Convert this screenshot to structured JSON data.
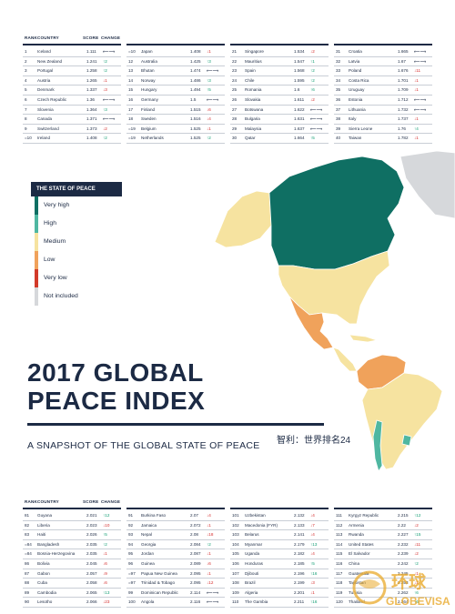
{
  "header": {
    "rank": "RANK",
    "country": "COUNTRY",
    "score": "SCORE",
    "change": "CHANGE"
  },
  "top_table": {
    "columns": [
      [
        {
          "rank": "1",
          "country": "Iceland",
          "score": "1.111",
          "change": "⟵⟶",
          "dir": "nc"
        },
        {
          "rank": "2",
          "country": "New Zealand",
          "score": "1.241",
          "change": "↑2",
          "dir": "up"
        },
        {
          "rank": "3",
          "country": "Portugal",
          "score": "1.258",
          "change": "↑2",
          "dir": "up"
        },
        {
          "rank": "4",
          "country": "Austria",
          "score": "1.265",
          "change": "↓1",
          "dir": "dn"
        },
        {
          "rank": "5",
          "country": "Denmark",
          "score": "1.337",
          "change": "↓3",
          "dir": "dn"
        },
        {
          "rank": "6",
          "country": "Czech Republic",
          "score": "1.36",
          "change": "⟵⟶",
          "dir": "nc"
        },
        {
          "rank": "7",
          "country": "Slovenia",
          "score": "1.364",
          "change": "↑3",
          "dir": "up"
        },
        {
          "rank": "8",
          "country": "Canada",
          "score": "1.371",
          "change": "⟵⟶",
          "dir": "nc"
        },
        {
          "rank": "9",
          "country": "Switzerland",
          "score": "1.373",
          "change": "↓2",
          "dir": "dn"
        },
        {
          "rank": "=10",
          "country": "Ireland",
          "score": "1.408",
          "change": "↑2",
          "dir": "up"
        }
      ],
      [
        {
          "rank": "=10",
          "country": "Japan",
          "score": "1.408",
          "change": "↓1",
          "dir": "dn"
        },
        {
          "rank": "12",
          "country": "Australia",
          "score": "1.425",
          "change": "↑3",
          "dir": "up"
        },
        {
          "rank": "13",
          "country": "Bhutan",
          "score": "1.474",
          "change": "⟵⟶",
          "dir": "nc"
        },
        {
          "rank": "14",
          "country": "Norway",
          "score": "1.486",
          "change": "↑3",
          "dir": "up"
        },
        {
          "rank": "15",
          "country": "Hungary",
          "score": "1.494",
          "change": "↑5",
          "dir": "up"
        },
        {
          "rank": "16",
          "country": "Germany",
          "score": "1.5",
          "change": "⟵⟶",
          "dir": "nc"
        },
        {
          "rank": "17",
          "country": "Finland",
          "score": "1.515",
          "change": "↓6",
          "dir": "dn"
        },
        {
          "rank": "18",
          "country": "Sweden",
          "score": "1.516",
          "change": "↓4",
          "dir": "dn"
        },
        {
          "rank": "=19",
          "country": "Belgium",
          "score": "1.525",
          "change": "↓1",
          "dir": "dn"
        },
        {
          "rank": "=19",
          "country": "Netherlands",
          "score": "1.525",
          "change": "↑2",
          "dir": "up"
        }
      ],
      [
        {
          "rank": "21",
          "country": "Singapore",
          "score": "1.534",
          "change": "↓2",
          "dir": "dn"
        },
        {
          "rank": "22",
          "country": "Mauritius",
          "score": "1.547",
          "change": "↑1",
          "dir": "up"
        },
        {
          "rank": "23",
          "country": "Spain",
          "score": "1.568",
          "change": "↑2",
          "dir": "up"
        },
        {
          "rank": "24",
          "country": "Chile",
          "score": "1.595",
          "change": "↑2",
          "dir": "up"
        },
        {
          "rank": "25",
          "country": "Romania",
          "score": "1.6",
          "change": "↑6",
          "dir": "up"
        },
        {
          "rank": "26",
          "country": "Slovakia",
          "score": "1.611",
          "change": "↓2",
          "dir": "dn"
        },
        {
          "rank": "27",
          "country": "Botswana",
          "score": "1.622",
          "change": "⟵⟶",
          "dir": "nc"
        },
        {
          "rank": "28",
          "country": "Bulgaria",
          "score": "1.631",
          "change": "⟵⟶",
          "dir": "nc"
        },
        {
          "rank": "29",
          "country": "Malaysia",
          "score": "1.637",
          "change": "⟵⟶",
          "dir": "nc"
        },
        {
          "rank": "30",
          "country": "Qatar",
          "score": "1.664",
          "change": "↑5",
          "dir": "up"
        }
      ],
      [
        {
          "rank": "31",
          "country": "Croatia",
          "score": "1.665",
          "change": "⟵⟶",
          "dir": "nc"
        },
        {
          "rank": "32",
          "country": "Latvia",
          "score": "1.67",
          "change": "⟵⟶",
          "dir": "nc"
        },
        {
          "rank": "33",
          "country": "Poland",
          "score": "1.676",
          "change": "↓11",
          "dir": "dn"
        },
        {
          "rank": "34",
          "country": "Costa Rica",
          "score": "1.701",
          "change": "↓1",
          "dir": "dn"
        },
        {
          "rank": "35",
          "country": "Uruguay",
          "score": "1.709",
          "change": "↓1",
          "dir": "dn"
        },
        {
          "rank": "36",
          "country": "Estonia",
          "score": "1.712",
          "change": "⟵⟶",
          "dir": "nc"
        },
        {
          "rank": "37",
          "country": "Lithuania",
          "score": "1.732",
          "change": "⟵⟶",
          "dir": "nc"
        },
        {
          "rank": "38",
          "country": "Italy",
          "score": "1.737",
          "change": "↓1",
          "dir": "dn"
        },
        {
          "rank": "39",
          "country": "Sierra Leone",
          "score": "1.76",
          "change": "↑4",
          "dir": "up"
        },
        {
          "rank": "40",
          "country": "Taiwan",
          "score": "1.782",
          "change": "↓1",
          "dir": "dn"
        }
      ]
    ]
  },
  "legend": {
    "title": "THE STATE OF PEACE",
    "items": [
      {
        "label": "Very high",
        "color": "#0f6f63"
      },
      {
        "label": "High",
        "color": "#4fb7a1"
      },
      {
        "label": "Medium",
        "color": "#f6e3a0"
      },
      {
        "label": "Low",
        "color": "#f0a25b"
      },
      {
        "label": "Very low",
        "color": "#d23a2a"
      },
      {
        "label": "Not included",
        "color": "#d6d8db"
      }
    ]
  },
  "map_colors": {
    "very_high": "#0f6f63",
    "high": "#4fb7a1",
    "medium": "#f6e3a0",
    "low": "#f0a25b",
    "not_included": "#d6d8db"
  },
  "title": {
    "line1": "2017 GLOBAL",
    "line2": "PEACE INDEX"
  },
  "subtitle": "A SNAPSHOT OF THE GLOBAL STATE OF PEACE",
  "chinese_caption": "智利：世界排名24",
  "bottom_table": {
    "columns": [
      [
        {
          "rank": "81",
          "country": "Guyana",
          "score": "2.021",
          "change": "↑12",
          "dir": "up"
        },
        {
          "rank": "82",
          "country": "Liberia",
          "score": "2.023",
          "change": "↓10",
          "dir": "dn"
        },
        {
          "rank": "83",
          "country": "Haiti",
          "score": "2.026",
          "change": "↑5",
          "dir": "up"
        },
        {
          "rank": "=84",
          "country": "Bangladesh",
          "score": "2.035",
          "change": "↑2",
          "dir": "up"
        },
        {
          "rank": "=84",
          "country": "Bosnia-Herzegovina",
          "score": "2.035",
          "change": "↓1",
          "dir": "dn"
        },
        {
          "rank": "86",
          "country": "Bolivia",
          "score": "2.045",
          "change": "↓6",
          "dir": "dn"
        },
        {
          "rank": "87",
          "country": "Gabon",
          "score": "2.057",
          "change": "↓9",
          "dir": "dn"
        },
        {
          "rank": "88",
          "country": "Cuba",
          "score": "2.058",
          "change": "↓6",
          "dir": "dn"
        },
        {
          "rank": "89",
          "country": "Cambodia",
          "score": "2.065",
          "change": "↑13",
          "dir": "up"
        },
        {
          "rank": "90",
          "country": "Lesotho",
          "score": "2.066",
          "change": "↓23",
          "dir": "dn"
        }
      ],
      [
        {
          "rank": "91",
          "country": "Burkina Faso",
          "score": "2.07",
          "change": "↓4",
          "dir": "dn"
        },
        {
          "rank": "92",
          "country": "Jamaica",
          "score": "2.072",
          "change": "↓1",
          "dir": "dn"
        },
        {
          "rank": "93",
          "country": "Nepal",
          "score": "2.08",
          "change": "↓18",
          "dir": "dn"
        },
        {
          "rank": "94",
          "country": "Georgia",
          "score": "2.084",
          "change": "↑2",
          "dir": "up"
        },
        {
          "rank": "95",
          "country": "Jordan",
          "score": "2.087",
          "change": "↓1",
          "dir": "dn"
        },
        {
          "rank": "96",
          "country": "Guinea",
          "score": "2.089",
          "change": "↓6",
          "dir": "dn"
        },
        {
          "rank": "=97",
          "country": "Papua New Guinea",
          "score": "2.095",
          "change": "↓1",
          "dir": "dn"
        },
        {
          "rank": "=97",
          "country": "Trinidad & Tobago",
          "score": "2.095",
          "change": "↓12",
          "dir": "dn"
        },
        {
          "rank": "99",
          "country": "Dominican Republic",
          "score": "2.114",
          "change": "⟵⟶",
          "dir": "nc"
        },
        {
          "rank": "100",
          "country": "Angola",
          "score": "2.116",
          "change": "⟵⟶",
          "dir": "nc"
        }
      ],
      [
        {
          "rank": "101",
          "country": "Uzbekistan",
          "score": "2.132",
          "change": "↓4",
          "dir": "dn"
        },
        {
          "rank": "102",
          "country": "Macedonia (FYR)",
          "score": "2.133",
          "change": "↓7",
          "dir": "dn"
        },
        {
          "rank": "103",
          "country": "Belarus",
          "score": "2.141",
          "change": "↓4",
          "dir": "dn"
        },
        {
          "rank": "104",
          "country": "Myanmar",
          "score": "2.179",
          "change": "↑13",
          "dir": "up"
        },
        {
          "rank": "105",
          "country": "Uganda",
          "score": "2.182",
          "change": "↓4",
          "dir": "dn"
        },
        {
          "rank": "106",
          "country": "Honduras",
          "score": "2.185",
          "change": "↑5",
          "dir": "up"
        },
        {
          "rank": "107",
          "country": "Djibouti",
          "score": "2.196",
          "change": "↑16",
          "dir": "up"
        },
        {
          "rank": "108",
          "country": "Brazil",
          "score": "2.199",
          "change": "↓3",
          "dir": "dn"
        },
        {
          "rank": "109",
          "country": "Algeria",
          "score": "2.201",
          "change": "↓1",
          "dir": "dn"
        },
        {
          "rank": "110",
          "country": "The Gambia",
          "score": "2.211",
          "change": "↑16",
          "dir": "up"
        }
      ],
      [
        {
          "rank": "111",
          "country": "Kyrgyz Republic",
          "score": "2.215",
          "change": "↑12",
          "dir": "up"
        },
        {
          "rank": "112",
          "country": "Armenia",
          "score": "2.22",
          "change": "↓2",
          "dir": "dn"
        },
        {
          "rank": "113",
          "country": "Rwanda",
          "score": "2.227",
          "change": "↑15",
          "dir": "up"
        },
        {
          "rank": "114",
          "country": "United States",
          "score": "2.232",
          "change": "↓11",
          "dir": "dn"
        },
        {
          "rank": "115",
          "country": "El Salvador",
          "score": "2.239",
          "change": "↓2",
          "dir": "dn"
        },
        {
          "rank": "116",
          "country": "China",
          "score": "2.242",
          "change": "↑2",
          "dir": "up"
        },
        {
          "rank": "117",
          "country": "Guatemala",
          "score": "2.245",
          "change": "↓1",
          "dir": "dn"
        },
        {
          "rank": "118",
          "country": "Tajikistan",
          "score": "2.253",
          "change": "↓1",
          "dir": "dn"
        },
        {
          "rank": "119",
          "country": "Tunisia",
          "score": "2.262",
          "change": "↑6",
          "dir": "up"
        },
        {
          "rank": "120",
          "country": "Thailand",
          "score": "2.264",
          "change": "↑6",
          "dir": "up"
        }
      ]
    ]
  },
  "watermark": {
    "cn": "环球",
    "en": "GLOBEVISA"
  }
}
